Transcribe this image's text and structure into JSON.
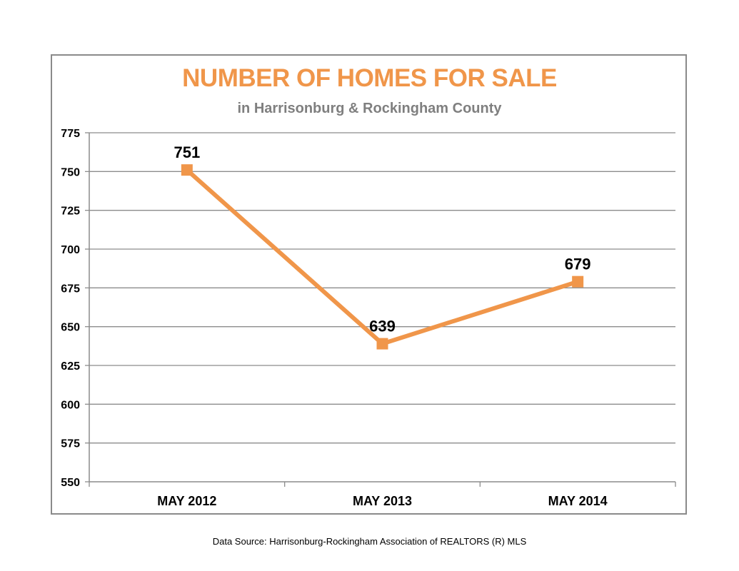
{
  "chart_data": {
    "type": "line",
    "title": "NUMBER OF HOMES  FOR SALE",
    "subtitle": "in Harrisonburg  & Rockingham County",
    "categories": [
      "MAY 2012",
      "MAY 2013",
      "MAY 2014"
    ],
    "series": [
      {
        "values": [
          751,
          639,
          679
        ],
        "color": "#f0964a",
        "marker": "square"
      }
    ],
    "data_labels": [
      "751",
      "639",
      "679"
    ],
    "y_ticks": [
      550,
      575,
      600,
      625,
      650,
      675,
      700,
      725,
      750,
      775
    ],
    "ylim": [
      550,
      775
    ],
    "grid": true,
    "legend": "none"
  },
  "footer": {
    "source": "Data Source: Harrisonburg-Rockingham Association of REALTORS (R) MLS"
  }
}
